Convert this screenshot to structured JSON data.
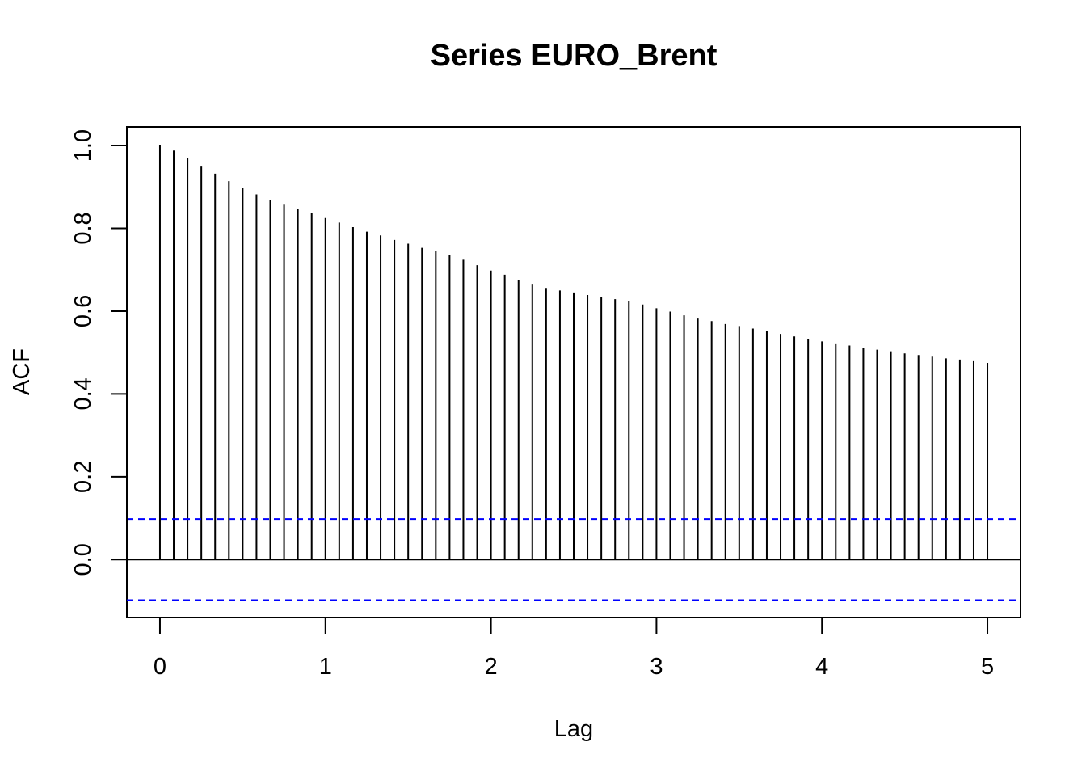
{
  "chart_data": {
    "type": "bar",
    "subtype": "acf-spikes",
    "title": "Series  EURO_Brent",
    "xlabel": "Lag",
    "ylabel": "ACF",
    "xlim": [
      -0.2,
      5.2
    ],
    "ylim": [
      -0.14,
      1.045
    ],
    "x_ticks": [
      {
        "value": 0,
        "label": "0"
      },
      {
        "value": 1,
        "label": "1"
      },
      {
        "value": 2,
        "label": "2"
      },
      {
        "value": 3,
        "label": "3"
      },
      {
        "value": 4,
        "label": "4"
      },
      {
        "value": 5,
        "label": "5"
      }
    ],
    "y_ticks": [
      {
        "value": 0.0,
        "label": "0.0"
      },
      {
        "value": 0.2,
        "label": "0.2"
      },
      {
        "value": 0.4,
        "label": "0.4"
      },
      {
        "value": 0.6,
        "label": "0.6"
      },
      {
        "value": 0.8,
        "label": "0.8"
      },
      {
        "value": 1.0,
        "label": "1.0"
      }
    ],
    "x": [
      0,
      0.0833,
      0.1667,
      0.25,
      0.3333,
      0.4167,
      0.5,
      0.5833,
      0.6667,
      0.75,
      0.8333,
      0.9167,
      1.0,
      1.0833,
      1.1667,
      1.25,
      1.3333,
      1.4167,
      1.5,
      1.5833,
      1.6667,
      1.75,
      1.8333,
      1.9167,
      2.0,
      2.0833,
      2.1667,
      2.25,
      2.3333,
      2.4167,
      2.5,
      2.5833,
      2.6667,
      2.75,
      2.8333,
      2.9167,
      3.0,
      3.0833,
      3.1667,
      3.25,
      3.3333,
      3.4167,
      3.5,
      3.5833,
      3.6667,
      3.75,
      3.8333,
      3.9167,
      4.0,
      4.0833,
      4.1667,
      4.25,
      4.3333,
      4.4167,
      4.5,
      4.5833,
      4.6667,
      4.75,
      4.8333,
      4.9167,
      5.0
    ],
    "values": [
      1.0,
      0.988,
      0.97,
      0.951,
      0.932,
      0.914,
      0.897,
      0.882,
      0.868,
      0.857,
      0.846,
      0.836,
      0.825,
      0.814,
      0.803,
      0.792,
      0.783,
      0.772,
      0.763,
      0.753,
      0.745,
      0.735,
      0.724,
      0.711,
      0.698,
      0.688,
      0.676,
      0.666,
      0.656,
      0.65,
      0.645,
      0.639,
      0.634,
      0.629,
      0.624,
      0.616,
      0.607,
      0.599,
      0.59,
      0.582,
      0.576,
      0.569,
      0.564,
      0.558,
      0.552,
      0.545,
      0.539,
      0.533,
      0.527,
      0.522,
      0.517,
      0.512,
      0.507,
      0.503,
      0.498,
      0.494,
      0.49,
      0.486,
      0.483,
      0.479,
      0.475
    ],
    "zero_line": 0,
    "confidence_bounds": [
      0.098,
      -0.098
    ],
    "colors": {
      "spikes": "#000000",
      "zero_line": "#000000",
      "confidence": "#0000ff",
      "frame": "#000000"
    },
    "grid": false,
    "legend": "none"
  }
}
